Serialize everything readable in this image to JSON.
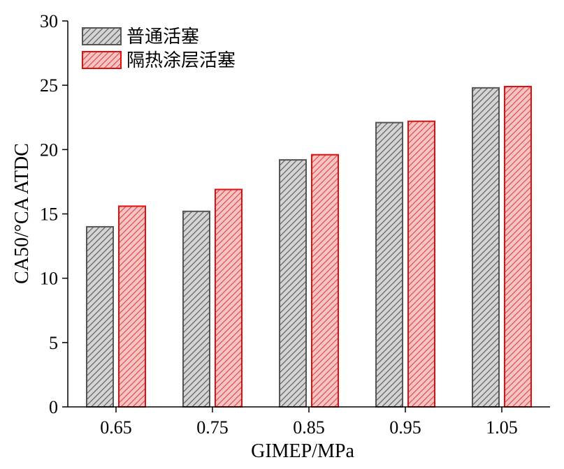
{
  "chart_data": {
    "type": "bar",
    "categories": [
      "0.65",
      "0.75",
      "0.85",
      "0.95",
      "1.05"
    ],
    "series": [
      {
        "name": "普通活塞",
        "values": [
          14.0,
          15.2,
          19.2,
          22.1,
          24.8
        ],
        "color": "#555555",
        "fill": "#bdbdbd"
      },
      {
        "name": "隔热涂层活塞",
        "values": [
          15.6,
          16.9,
          19.6,
          22.2,
          24.9
        ],
        "color": "#e01010",
        "fill": "#f2a8a8"
      }
    ],
    "xlabel": "GIMEP/MPa",
    "ylabel": "CA50/°CA ATDC",
    "ylim": [
      0,
      30
    ],
    "yticks": [
      "0",
      "5",
      "10",
      "15",
      "20",
      "25",
      "30"
    ],
    "legend_position": "top-left",
    "grid": false,
    "pattern": "diagonal-hatch"
  }
}
